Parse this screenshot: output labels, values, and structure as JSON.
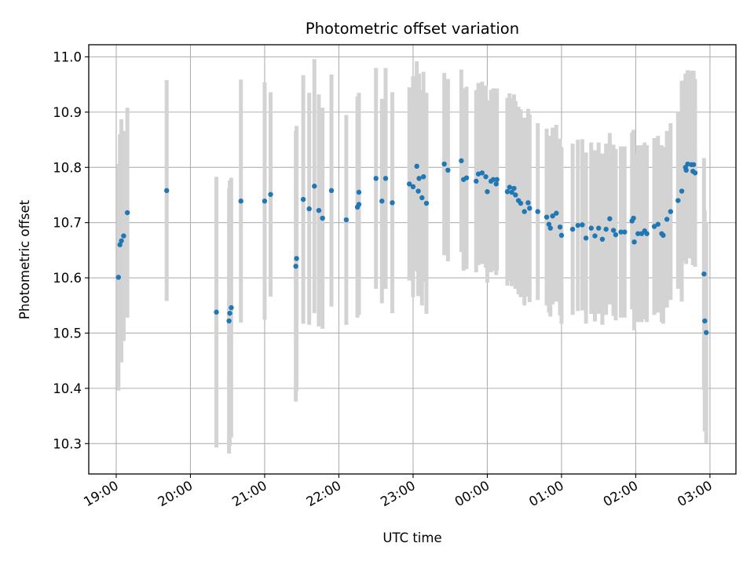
{
  "chart_data": {
    "type": "scatter",
    "title": "Photometric offset variation",
    "xlabel": "UTC time",
    "ylabel": "Photometric offset",
    "x_unit": "hours (UTC, continuing past midnight)",
    "xlim": [
      18.63,
      27.35
    ],
    "ylim": [
      10.245,
      11.022
    ],
    "grid": true,
    "x_ticks": [
      {
        "value": 19,
        "label": "19:00"
      },
      {
        "value": 20,
        "label": "20:00"
      },
      {
        "value": 21,
        "label": "21:00"
      },
      {
        "value": 22,
        "label": "22:00"
      },
      {
        "value": 23,
        "label": "23:00"
      },
      {
        "value": 24,
        "label": "00:00"
      },
      {
        "value": 25,
        "label": "01:00"
      },
      {
        "value": 26,
        "label": "02:00"
      },
      {
        "value": 27,
        "label": "03:00"
      }
    ],
    "y_ticks": [
      {
        "value": 10.3,
        "label": "10.3"
      },
      {
        "value": 10.4,
        "label": "10.4"
      },
      {
        "value": 10.5,
        "label": "10.5"
      },
      {
        "value": 10.6,
        "label": "10.6"
      },
      {
        "value": 10.7,
        "label": "10.7"
      },
      {
        "value": 10.8,
        "label": "10.8"
      },
      {
        "value": 10.9,
        "label": "10.9"
      },
      {
        "value": 11.0,
        "label": "11.0"
      }
    ],
    "colors": {
      "points": "#1f77b4",
      "errorbars": "#d3d3d3",
      "grid": "#b0b0b0"
    },
    "points": [
      [
        19.03,
        10.601,
        0.205
      ],
      [
        19.05,
        10.66,
        0.2
      ],
      [
        19.07,
        10.667,
        0.22
      ],
      [
        19.1,
        10.676,
        0.19
      ],
      [
        19.15,
        10.718,
        0.19
      ],
      [
        19.68,
        10.758,
        0.2
      ],
      [
        20.35,
        10.538,
        0.245
      ],
      [
        20.52,
        10.522,
        0.24
      ],
      [
        20.53,
        10.536,
        0.24
      ],
      [
        20.55,
        10.546,
        0.235
      ],
      [
        20.68,
        10.739,
        0.22
      ],
      [
        21.0,
        10.739,
        0.215
      ],
      [
        21.08,
        10.751,
        0.185
      ],
      [
        21.42,
        10.621,
        0.245
      ],
      [
        21.43,
        10.635,
        0.24
      ],
      [
        21.52,
        10.742,
        0.225
      ],
      [
        21.6,
        10.725,
        0.21
      ],
      [
        21.67,
        10.766,
        0.23
      ],
      [
        21.73,
        10.722,
        0.21
      ],
      [
        21.78,
        10.708,
        0.2
      ],
      [
        21.9,
        10.758,
        0.21
      ],
      [
        22.1,
        10.705,
        0.19
      ],
      [
        22.25,
        10.728,
        0.2
      ],
      [
        22.27,
        10.755,
        0.18
      ],
      [
        22.27,
        10.733,
        0.2
      ],
      [
        22.5,
        10.78,
        0.2
      ],
      [
        22.58,
        10.739,
        0.185
      ],
      [
        22.63,
        10.78,
        0.2
      ],
      [
        22.72,
        10.736,
        0.2
      ],
      [
        22.95,
        10.77,
        0.175
      ],
      [
        23.0,
        10.765,
        0.2
      ],
      [
        23.05,
        10.802,
        0.19
      ],
      [
        23.07,
        10.757,
        0.19
      ],
      [
        23.08,
        10.78,
        0.19
      ],
      [
        23.12,
        10.745,
        0.195
      ],
      [
        23.14,
        10.783,
        0.19
      ],
      [
        23.18,
        10.735,
        0.2
      ],
      [
        23.42,
        10.806,
        0.165
      ],
      [
        23.47,
        10.795,
        0.165
      ],
      [
        23.65,
        10.812,
        0.165
      ],
      [
        23.68,
        10.778,
        0.165
      ],
      [
        23.72,
        10.781,
        0.165
      ],
      [
        23.85,
        10.775,
        0.165
      ],
      [
        23.88,
        10.788,
        0.165
      ],
      [
        23.93,
        10.79,
        0.165
      ],
      [
        23.98,
        10.783,
        0.165
      ],
      [
        24.0,
        10.756,
        0.165
      ],
      [
        24.05,
        10.775,
        0.165
      ],
      [
        24.08,
        10.778,
        0.165
      ],
      [
        24.12,
        10.77,
        0.165
      ],
      [
        24.13,
        10.778,
        0.165
      ],
      [
        24.27,
        10.756,
        0.17
      ],
      [
        24.3,
        10.764,
        0.17
      ],
      [
        24.33,
        10.755,
        0.17
      ],
      [
        24.36,
        10.762,
        0.17
      ],
      [
        24.38,
        10.75,
        0.17
      ],
      [
        24.42,
        10.74,
        0.17
      ],
      [
        24.45,
        10.735,
        0.17
      ],
      [
        24.5,
        10.72,
        0.17
      ],
      [
        24.55,
        10.736,
        0.17
      ],
      [
        24.57,
        10.726,
        0.17
      ],
      [
        24.68,
        10.72,
        0.16
      ],
      [
        24.8,
        10.71,
        0.16
      ],
      [
        24.83,
        10.697,
        0.16
      ],
      [
        24.85,
        10.69,
        0.16
      ],
      [
        24.88,
        10.712,
        0.16
      ],
      [
        24.93,
        10.717,
        0.16
      ],
      [
        24.98,
        10.692,
        0.16
      ],
      [
        25.0,
        10.677,
        0.16
      ],
      [
        25.15,
        10.688,
        0.155
      ],
      [
        25.22,
        10.695,
        0.155
      ],
      [
        25.28,
        10.696,
        0.155
      ],
      [
        25.33,
        10.672,
        0.155
      ],
      [
        25.4,
        10.69,
        0.155
      ],
      [
        25.45,
        10.676,
        0.155
      ],
      [
        25.5,
        10.69,
        0.155
      ],
      [
        25.55,
        10.67,
        0.155
      ],
      [
        25.6,
        10.688,
        0.155
      ],
      [
        25.65,
        10.707,
        0.155
      ],
      [
        25.7,
        10.686,
        0.155
      ],
      [
        25.73,
        10.678,
        0.155
      ],
      [
        25.8,
        10.683,
        0.155
      ],
      [
        25.85,
        10.683,
        0.155
      ],
      [
        25.95,
        10.703,
        0.16
      ],
      [
        25.97,
        10.708,
        0.16
      ],
      [
        25.98,
        10.665,
        0.16
      ],
      [
        26.03,
        10.68,
        0.16
      ],
      [
        26.08,
        10.68,
        0.16
      ],
      [
        26.12,
        10.685,
        0.16
      ],
      [
        26.15,
        10.68,
        0.16
      ],
      [
        26.25,
        10.693,
        0.16
      ],
      [
        26.3,
        10.697,
        0.16
      ],
      [
        26.35,
        10.68,
        0.16
      ],
      [
        26.37,
        10.677,
        0.16
      ],
      [
        26.42,
        10.706,
        0.16
      ],
      [
        26.47,
        10.72,
        0.16
      ],
      [
        26.57,
        10.74,
        0.16
      ],
      [
        26.62,
        10.757,
        0.2
      ],
      [
        26.67,
        10.8,
        0.17
      ],
      [
        26.68,
        10.795,
        0.17
      ],
      [
        26.7,
        10.806,
        0.17
      ],
      [
        26.75,
        10.805,
        0.17
      ],
      [
        26.77,
        10.793,
        0.17
      ],
      [
        26.8,
        10.79,
        0.17
      ],
      [
        26.78,
        10.805,
        0.17
      ],
      [
        26.92,
        10.607,
        0.21
      ],
      [
        26.93,
        10.522,
        0.2
      ],
      [
        26.95,
        10.501,
        0.2
      ]
    ]
  }
}
